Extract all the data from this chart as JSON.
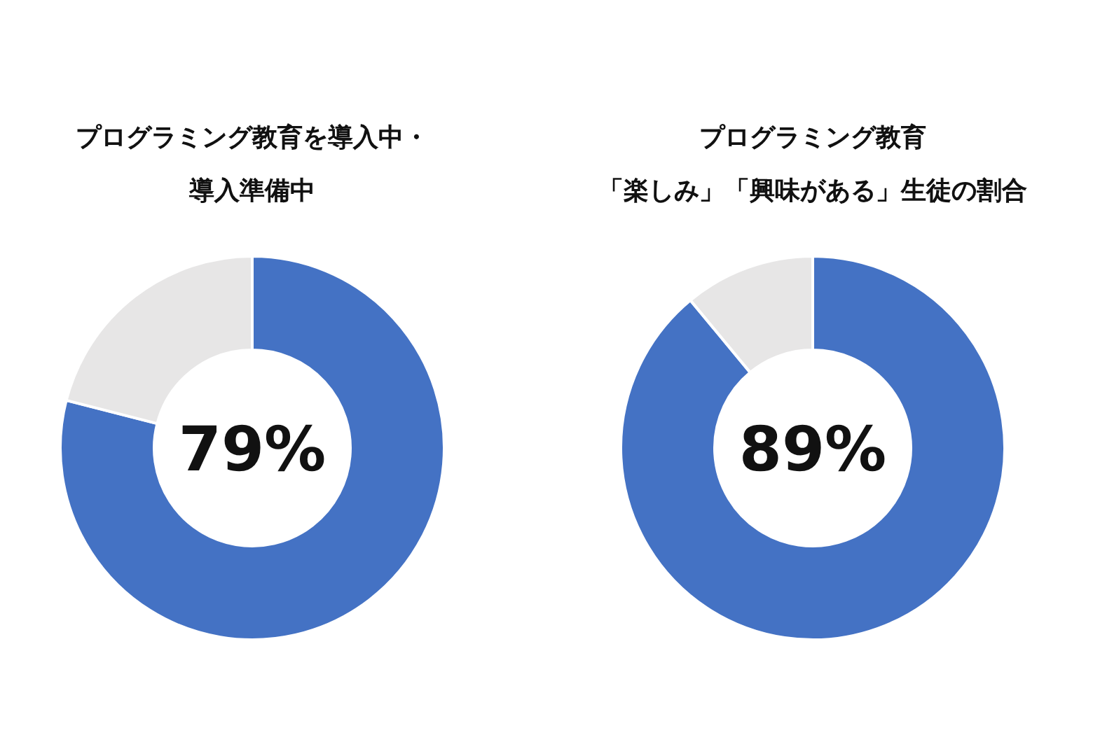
{
  "chart_data": [
    {
      "type": "donut",
      "title": "プログラミング教育を導入中・",
      "subtitle": "導入準備中",
      "categories": [
        null,
        null
      ],
      "values": [
        79,
        21
      ],
      "colors": [
        "#4472c4",
        "#e7e6e6"
      ],
      "annotations": [
        "79%"
      ]
    },
    {
      "type": "donut",
      "title": "プログラミング教育",
      "subtitle": "「楽しみ」「興味がある」生徒の割合",
      "categories": [
        null,
        null
      ],
      "values": [
        89,
        11
      ],
      "colors": [
        "#4472c4",
        "#e7e6e6"
      ],
      "annotations": [
        "89%"
      ]
    }
  ]
}
